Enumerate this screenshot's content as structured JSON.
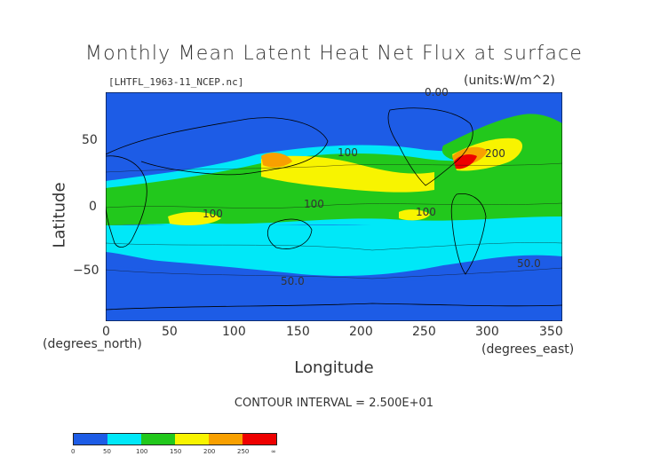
{
  "title": "Monthly Mean Latent Heat Net Flux at surface",
  "file_label": "[LHTFL_1963-11_NCEP.nc]",
  "units_label": "(units:W/m^2)",
  "x_axis": {
    "title": "Longitude",
    "unit_label": "(degrees_east)",
    "ticks": [
      "0",
      "50",
      "100",
      "150",
      "200",
      "250",
      "300",
      "350"
    ],
    "range": [
      0,
      360
    ]
  },
  "y_axis": {
    "title": "Latitude",
    "unit_label": "(degrees_north)",
    "ticks": [
      "50",
      "0",
      "−50"
    ],
    "range": [
      -90,
      90
    ]
  },
  "contour_labels": [
    "0.00",
    "100",
    "100",
    "100",
    "100",
    "100",
    "200",
    "50.0",
    "50.0"
  ],
  "contour_interval": "CONTOUR INTERVAL = 2.500E+01",
  "colorbar": {
    "labels": [
      "0",
      "50",
      "100",
      "150",
      "200",
      "250",
      "∞"
    ],
    "colors": [
      "#1d5ce6",
      "#1d5ce6",
      "#00e8f8",
      "#00e8f8",
      "#22c81c",
      "#22c81c",
      "#f8f400",
      "#f8f400",
      "#f8a000",
      "#f8a000",
      "#ee0000",
      "#ee0000"
    ]
  },
  "palette": {
    "ocean_low": "#1d5ce6",
    "cyan": "#00e8f8",
    "green": "#22c81c",
    "yellow": "#f8f400",
    "orange": "#f8a000",
    "red": "#ee0000"
  }
}
